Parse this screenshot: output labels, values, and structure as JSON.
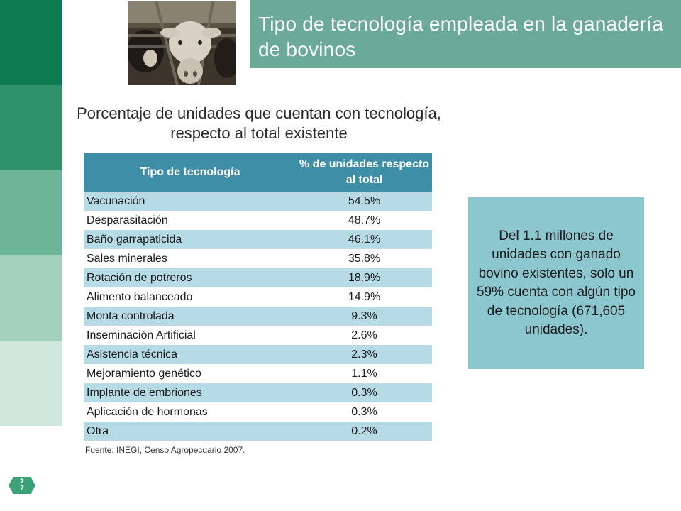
{
  "header": {
    "title": "Tipo de tecnología empleada en la ganadería de bovinos"
  },
  "subtitle": "Porcentaje de unidades que cuentan con tecnología, respecto al total existente",
  "table": {
    "headers": [
      "Tipo de tecnología",
      "% de unidades respecto al total"
    ],
    "rows": [
      {
        "name": "Vacunación",
        "value": "54.5%"
      },
      {
        "name": "Desparasitación",
        "value": "48.7%"
      },
      {
        "name": "Baño garrapaticida",
        "value": "46.1%"
      },
      {
        "name": "Sales minerales",
        "value": "35.8%"
      },
      {
        "name": "Rotación de potreros",
        "value": "18.9%"
      },
      {
        "name": "Alimento balanceado",
        "value": "14.9%"
      },
      {
        "name": "Monta controlada",
        "value": "9.3%"
      },
      {
        "name": "Inseminación Artificial",
        "value": "2.6%"
      },
      {
        "name": "Asistencia técnica",
        "value": "2.3%"
      },
      {
        "name": "Mejoramiento genético",
        "value": "1.1%"
      },
      {
        "name": "Implante de embriones",
        "value": "0.3%"
      },
      {
        "name": "Aplicación de hormonas",
        "value": "0.3%"
      },
      {
        "name": "Otra",
        "value": "0.2%"
      }
    ]
  },
  "source": "Fuente: INEGI, Censo Agropecuario 2007.",
  "info_box": {
    "text": "Del 1.1 millones de unidades con ganado bovino existentes, solo un 59% cuenta con algún tipo de tecnología (671,605 unidades)."
  },
  "page_number": "27",
  "photo": {
    "icon": "cattle-photo"
  },
  "colors": {
    "title_bar": "#6aaa97",
    "table_header": "#3f8ea8",
    "row_stripe": "#b7dbe6",
    "info_box": "#8cc6ce",
    "side_dark": "#0d7a50"
  }
}
